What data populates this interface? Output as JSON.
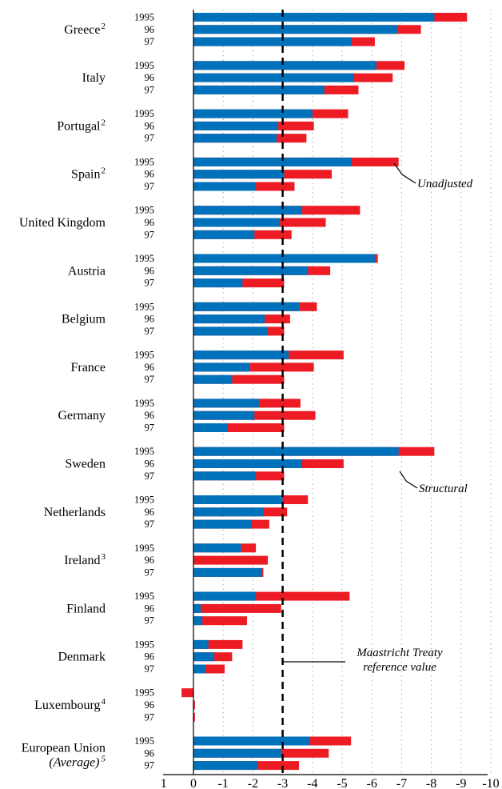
{
  "chart_data": {
    "type": "bar",
    "orientation": "horizontal",
    "colors": {
      "structural": "#0072bc",
      "unadjusted": "#ed1c24"
    },
    "x_ticks": [
      "1",
      "0",
      "-1",
      "-2",
      "-3",
      "-4",
      "-5",
      "-6",
      "-7",
      "-8",
      "-9",
      "-10"
    ],
    "xlim": [
      1,
      -10
    ],
    "grid": "vertical dotted",
    "reference_value": -3,
    "annotations": {
      "unadjusted": "Unadjusted",
      "structural": "Structural",
      "reference_line1": "Maastricht Treaty",
      "reference_line2": "reference value"
    },
    "groups": [
      {
        "name": "Greece",
        "sup": "2",
        "years": [
          "1995",
          "96",
          "97"
        ],
        "structural": [
          -8.1,
          -6.85,
          -5.3
        ],
        "unadjusted": [
          -9.2,
          -7.65,
          -6.1
        ]
      },
      {
        "name": "Italy",
        "sup": "",
        "years": [
          "1995",
          "96",
          "97"
        ],
        "structural": [
          -6.15,
          -5.4,
          -4.4
        ],
        "unadjusted": [
          -7.1,
          -6.7,
          -5.55
        ]
      },
      {
        "name": "Portugal",
        "sup": "2",
        "years": [
          "1995",
          "96",
          "97"
        ],
        "structural": [
          -4.0,
          -2.85,
          -2.8
        ],
        "unadjusted": [
          -5.2,
          -4.05,
          -3.8
        ]
      },
      {
        "name": "Spain",
        "sup": "2",
        "years": [
          "1995",
          "96",
          "97"
        ],
        "structural": [
          -5.3,
          -3.05,
          -2.1
        ],
        "unadjusted": [
          -6.9,
          -4.65,
          -3.4
        ]
      },
      {
        "name": "United Kingdom",
        "sup": "",
        "years": [
          "1995",
          "96",
          "97"
        ],
        "structural": [
          -3.65,
          -2.9,
          -2.05
        ],
        "unadjusted": [
          -5.6,
          -4.45,
          -3.3
        ]
      },
      {
        "name": "Austria",
        "sup": "",
        "years": [
          "1995",
          "96",
          "97"
        ],
        "structural": [
          -6.1,
          -3.85,
          -1.65
        ],
        "unadjusted": [
          -6.2,
          -4.6,
          -3.05
        ]
      },
      {
        "name": "Belgium",
        "sup": "",
        "years": [
          "1995",
          "96",
          "97"
        ],
        "structural": [
          -3.55,
          -2.4,
          -2.5
        ],
        "unadjusted": [
          -4.15,
          -3.25,
          -3.05
        ]
      },
      {
        "name": "France",
        "sup": "",
        "years": [
          "1995",
          "96",
          "97"
        ],
        "structural": [
          -3.2,
          -1.9,
          -1.3
        ],
        "unadjusted": [
          -5.05,
          -4.05,
          -3.05
        ]
      },
      {
        "name": "Germany",
        "sup": "",
        "years": [
          "1995",
          "96",
          "97"
        ],
        "structural": [
          -2.2,
          -2.05,
          -1.15
        ],
        "unadjusted": [
          -3.6,
          -4.1,
          -3.05
        ]
      },
      {
        "name": "Sweden",
        "sup": "",
        "years": [
          "1995",
          "96",
          "97"
        ],
        "structural": [
          -6.9,
          -3.65,
          -2.1
        ],
        "unadjusted": [
          -8.1,
          -5.05,
          -3.05
        ]
      },
      {
        "name": "Netherlands",
        "sup": "",
        "years": [
          "1995",
          "96",
          "97"
        ],
        "structural": [
          -3.0,
          -2.35,
          -1.95
        ],
        "unadjusted": [
          -3.85,
          -3.15,
          -2.55
        ]
      },
      {
        "name": "Ireland",
        "sup": "3",
        "years": [
          "1995",
          "96",
          "97"
        ],
        "structural": [
          -1.6,
          -2.5,
          -2.3
        ],
        "unadjusted": [
          -2.1,
          -2.5,
          -2.35
        ]
      },
      {
        "name": "Finland",
        "sup": "",
        "years": [
          "1995",
          "96",
          "97"
        ],
        "structural": [
          -2.1,
          -0.25,
          -0.3
        ],
        "unadjusted": [
          -5.25,
          -2.95,
          -1.8
        ]
      },
      {
        "name": "Denmark",
        "sup": "",
        "years": [
          "1995",
          "96",
          "97"
        ],
        "structural": [
          -0.5,
          -0.7,
          -0.4
        ],
        "unadjusted": [
          -1.65,
          -1.3,
          -1.05
        ]
      },
      {
        "name": "Luxembourg",
        "sup": "4",
        "years": [
          "1995",
          "96",
          "97"
        ],
        "structural": [
          0.4,
          -0.05,
          -0.05
        ],
        "unadjusted": [
          0.4,
          -0.05,
          -0.05
        ]
      },
      {
        "name": "European Union",
        "name2": "(Average)",
        "sup": "5",
        "years": [
          "1995",
          "96",
          "97"
        ],
        "structural": [
          -3.9,
          -2.95,
          -2.15
        ],
        "unadjusted": [
          -5.3,
          -4.55,
          -3.55
        ]
      }
    ]
  }
}
